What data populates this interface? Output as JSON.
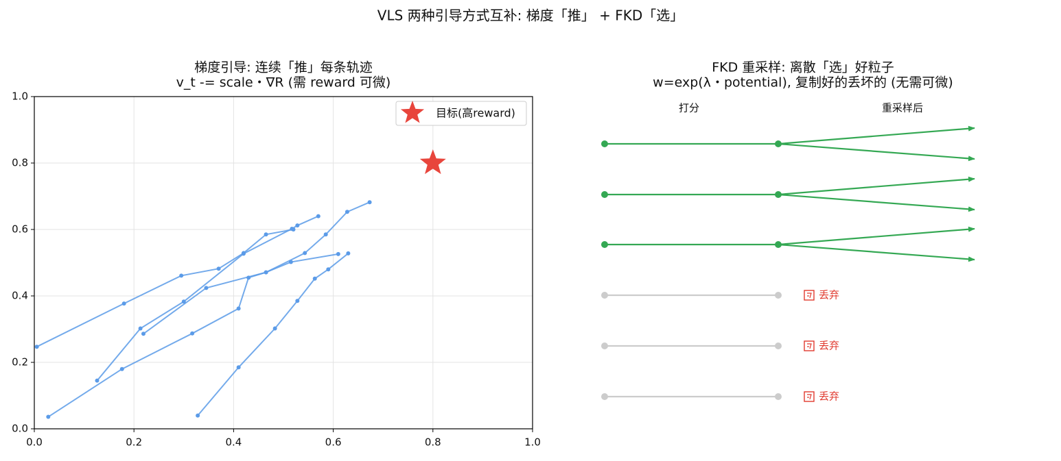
{
  "title": "VLS 两种引导方式互补: 梯度「推」 + FKD「选」",
  "chart_data": {
    "type": "line",
    "title": "梯度引导: 连续「推」每条轨迹",
    "subtitle": "v_t -= scale・∇R (需 reward 可微)",
    "xlim": [
      0,
      1
    ],
    "ylim": [
      0,
      1
    ],
    "xticks": [
      {
        "value": 0,
        "label": "0.0"
      },
      0.2,
      0.4,
      0.6,
      0.8,
      {
        "value": 1,
        "label": "1.0"
      }
    ],
    "yticks": [
      {
        "value": 0,
        "label": "0.0"
      },
      0.2,
      0.4,
      0.6,
      0.8,
      {
        "value": 1,
        "label": "1.0"
      }
    ],
    "grid": true,
    "legend": "upper right",
    "series": [
      {
        "color": "#5b9be8",
        "x": [
          0.005,
          0.18,
          0.295,
          0.37,
          0.42,
          0.465,
          0.52
        ],
        "values": [
          0.247,
          0.377,
          0.461,
          0.482,
          0.529,
          0.585,
          0.6
        ]
      },
      {
        "color": "#5b9be8",
        "x": [
          0.028,
          0.176,
          0.317,
          0.41,
          0.43,
          0.465,
          0.515,
          0.61
        ],
        "values": [
          0.036,
          0.18,
          0.287,
          0.362,
          0.455,
          0.471,
          0.502,
          0.526
        ]
      },
      {
        "color": "#5b9be8",
        "x": [
          0.126,
          0.213,
          0.3,
          0.42,
          0.517,
          0.528,
          0.57
        ],
        "values": [
          0.145,
          0.302,
          0.383,
          0.527,
          0.602,
          0.612,
          0.64
        ]
      },
      {
        "color": "#5b9be8",
        "x": [
          0.219,
          0.345,
          0.465,
          0.543,
          0.585,
          0.628,
          0.673
        ],
        "values": [
          0.286,
          0.424,
          0.471,
          0.529,
          0.585,
          0.653,
          0.682
        ]
      },
      {
        "color": "#5b9be8",
        "x": [
          0.328,
          0.41,
          0.483,
          0.528,
          0.563,
          0.59,
          0.63
        ],
        "values": [
          0.04,
          0.185,
          0.302,
          0.385,
          0.452,
          0.48,
          0.528
        ]
      }
    ],
    "target": {
      "name": "目标(高reward)",
      "x": 0.8,
      "y": 0.8,
      "color": "#e8453c"
    }
  },
  "diagram": {
    "title": "FKD 重采样: 离散「选」好粒子",
    "subtitle": "w=exp(λ・potential), 复制好的丢坏的 (无需可微)",
    "columns": [
      "打分",
      "重采样后"
    ],
    "discarded": [
      "丢弃",
      "丢弃",
      "丢弃"
    ]
  }
}
